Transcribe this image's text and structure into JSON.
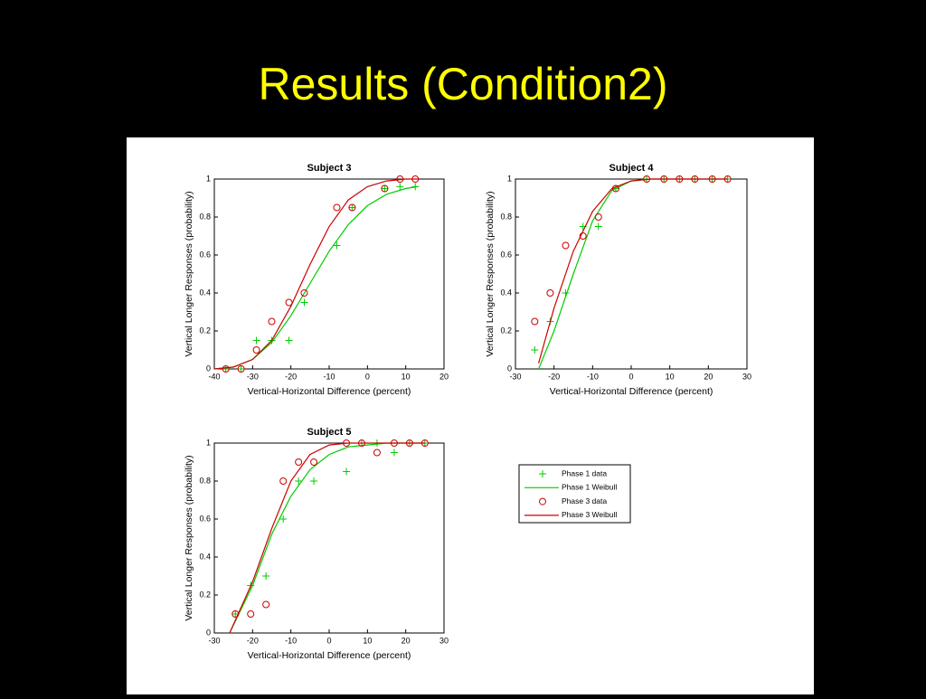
{
  "title": "Results (Condition2)",
  "chart_data": [
    {
      "type": "line",
      "title": "Subject 3",
      "xlabel": "Vertical-Horizontal Difference (percent)",
      "ylabel": "Vertical Longer Responses (probability)",
      "xlim": [
        -40,
        20
      ],
      "xticks": [
        -40,
        -30,
        -20,
        -10,
        0,
        10,
        20
      ],
      "ylim": [
        0,
        1
      ],
      "yticks": [
        0,
        0.2,
        0.4,
        0.6,
        0.8,
        1
      ],
      "series": [
        {
          "name": "Phase 1 data",
          "color": "#00cc00",
          "marker": "plus",
          "x": [
            -37,
            -33,
            -29,
            -25,
            -20.5,
            -16.5,
            -8,
            -4,
            4.5,
            8.5,
            12.5
          ],
          "values": [
            0,
            0,
            0.15,
            0.15,
            0.15,
            0.35,
            0.65,
            0.85,
            0.95,
            0.96,
            0.96
          ]
        },
        {
          "name": "Phase 1 Weibull",
          "color": "#00cc00",
          "marker": "none",
          "x": [
            -40,
            -35,
            -30,
            -25,
            -20,
            -15,
            -10,
            -5,
            0,
            5,
            10,
            13
          ],
          "values": [
            0,
            0.01,
            0.05,
            0.14,
            0.28,
            0.45,
            0.62,
            0.76,
            0.86,
            0.92,
            0.95,
            0.96
          ]
        },
        {
          "name": "Phase 3 data",
          "color": "#cc0000",
          "marker": "circle",
          "x": [
            -37,
            -33,
            -29,
            -25,
            -20.5,
            -16.5,
            -8,
            -4,
            4.5,
            8.5,
            12.5
          ],
          "values": [
            0,
            0,
            0.1,
            0.25,
            0.35,
            0.4,
            0.85,
            0.85,
            0.95,
            1,
            1
          ]
        },
        {
          "name": "Phase 3 Weibull",
          "color": "#cc0000",
          "marker": "none",
          "x": [
            -40,
            -35,
            -30,
            -25,
            -20,
            -15,
            -10,
            -5,
            0,
            5,
            10,
            13
          ],
          "values": [
            0,
            0.01,
            0.05,
            0.15,
            0.33,
            0.55,
            0.75,
            0.89,
            0.96,
            0.99,
            1,
            1
          ]
        }
      ]
    },
    {
      "type": "line",
      "title": "Subject 4",
      "xlabel": "Vertical-Horizontal Difference (percent)",
      "ylabel": "Vertical Longer Responses (probability)",
      "xlim": [
        -30,
        30
      ],
      "xticks": [
        -30,
        -20,
        -10,
        0,
        10,
        20,
        30
      ],
      "ylim": [
        0,
        1
      ],
      "yticks": [
        0,
        0.2,
        0.4,
        0.6,
        0.8,
        1
      ],
      "series": [
        {
          "color": "#00cc00",
          "marker": "plus",
          "x": [
            -25,
            -21,
            -17,
            -12.5,
            -8.5,
            -4,
            4,
            8.5,
            12.5,
            16.5,
            21,
            25
          ],
          "values": [
            0.1,
            0.25,
            0.4,
            0.75,
            0.75,
            0.95,
            1,
            1,
            1,
            1,
            1,
            1
          ]
        },
        {
          "color": "#00cc00",
          "marker": "none",
          "x": [
            -24,
            -20,
            -15,
            -10,
            -5,
            0,
            5,
            10,
            15,
            20,
            25
          ],
          "values": [
            0,
            0.2,
            0.5,
            0.78,
            0.94,
            0.99,
            1,
            1,
            1,
            1,
            1
          ]
        },
        {
          "color": "#cc0000",
          "marker": "circle",
          "x": [
            -25,
            -21,
            -17,
            -12.5,
            -8.5,
            -4,
            4,
            8.5,
            12.5,
            16.5,
            21,
            25
          ],
          "values": [
            0.25,
            0.4,
            0.65,
            0.7,
            0.8,
            0.95,
            1,
            1,
            1,
            1,
            1,
            1
          ]
        },
        {
          "color": "#cc0000",
          "marker": "none",
          "x": [
            -24,
            -20,
            -15,
            -10,
            -5,
            0,
            5,
            10,
            15,
            20,
            25
          ],
          "values": [
            0.03,
            0.32,
            0.62,
            0.83,
            0.95,
            0.99,
            1,
            1,
            1,
            1,
            1
          ]
        }
      ]
    },
    {
      "type": "line",
      "title": "Subject 5",
      "xlabel": "Vertical-Horizontal Difference (percent)",
      "ylabel": "Vertical Longer Responses (probability)",
      "xlim": [
        -30,
        30
      ],
      "xticks": [
        -30,
        -20,
        -10,
        0,
        10,
        20,
        30
      ],
      "ylim": [
        0,
        1
      ],
      "yticks": [
        0,
        0.2,
        0.4,
        0.6,
        0.8,
        1
      ],
      "series": [
        {
          "color": "#00cc00",
          "marker": "plus",
          "x": [
            -24.5,
            -20.5,
            -16.5,
            -12,
            -8,
            -4,
            4.5,
            8.5,
            12.5,
            17,
            21,
            25
          ],
          "values": [
            0.1,
            0.25,
            0.3,
            0.6,
            0.8,
            0.8,
            0.85,
            1,
            1,
            0.95,
            1,
            1
          ]
        },
        {
          "color": "#00cc00",
          "marker": "none",
          "x": [
            -26,
            -20,
            -15,
            -10,
            -5,
            0,
            5,
            10,
            15,
            20,
            25
          ],
          "values": [
            0,
            0.25,
            0.52,
            0.72,
            0.86,
            0.94,
            0.98,
            0.99,
            1,
            1,
            1
          ]
        },
        {
          "color": "#cc0000",
          "marker": "circle",
          "x": [
            -24.5,
            -20.5,
            -16.5,
            -12,
            -8,
            -4,
            4.5,
            8.5,
            12.5,
            17,
            21,
            25
          ],
          "values": [
            0.1,
            0.1,
            0.15,
            0.8,
            0.9,
            0.9,
            1,
            1,
            0.95,
            1,
            1,
            1
          ]
        },
        {
          "color": "#cc0000",
          "marker": "none",
          "x": [
            -26,
            -20,
            -15,
            -10,
            -5,
            0,
            5,
            10,
            15,
            20,
            25
          ],
          "values": [
            0,
            0.27,
            0.55,
            0.8,
            0.94,
            0.99,
            1,
            1,
            1,
            1,
            1
          ]
        }
      ]
    }
  ]
}
